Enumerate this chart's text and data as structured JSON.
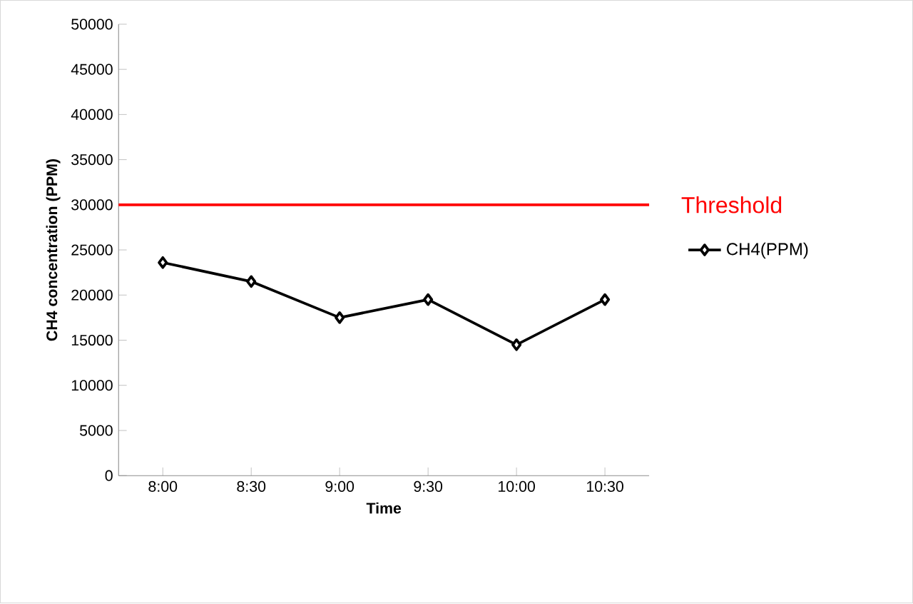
{
  "chart_data": {
    "type": "line",
    "xlabel": "Time",
    "ylabel": "CH4 concentration (PPM)",
    "categories": [
      "8:00",
      "8:30",
      "9:00",
      "9:30",
      "10:00",
      "10:30"
    ],
    "series": [
      {
        "name": "CH4(PPM)",
        "color": "#000000",
        "values": [
          23600,
          21500,
          17500,
          19500,
          14500,
          19500
        ]
      }
    ],
    "ylim": [
      0,
      50000
    ],
    "yticks": [
      0,
      5000,
      10000,
      15000,
      20000,
      25000,
      30000,
      35000,
      40000,
      45000,
      50000
    ],
    "ref_lines": [
      {
        "axis": "y",
        "value": 30000,
        "label": "Threshold",
        "color": "#ff0000"
      }
    ],
    "legend": "right",
    "marker": "diamond",
    "line_style": "solid",
    "grid": false
  }
}
